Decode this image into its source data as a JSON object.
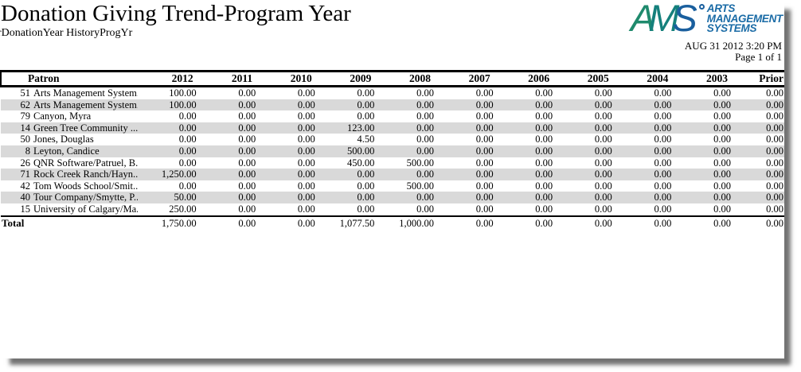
{
  "report": {
    "title": "Donation Giving Trend-Program Year",
    "subtitle": "rDonationYear HistoryProgYr",
    "timestamp": "AUG 31 2012 3:20 PM",
    "page_info": "Page 1 of 1"
  },
  "logo": {
    "letter_a": "A",
    "letter_m": "M",
    "letter_s": "S",
    "lines": [
      "ARTS",
      "MANAGEMENT",
      "SYSTEMS"
    ],
    "colors": {
      "letter_a": "#1f8a6d",
      "letter_m": "#15807c",
      "letter_s": "#1a5f9e",
      "text": "#1a6ba6"
    }
  },
  "table": {
    "zebra_color": "#d9d9d9",
    "patron_header": "Patron",
    "year_headers": [
      "2012",
      "2011",
      "2010",
      "2009",
      "2008",
      "2007",
      "2006",
      "2005",
      "2004",
      "2003",
      "Prior"
    ],
    "rows": [
      {
        "id": "51",
        "name": "Arts Management System...",
        "values": [
          "100.00",
          "0.00",
          "0.00",
          "0.00",
          "0.00",
          "0.00",
          "0.00",
          "0.00",
          "0.00",
          "0.00",
          "0.00"
        ]
      },
      {
        "id": "62",
        "name": "Arts Management System...",
        "values": [
          "100.00",
          "0.00",
          "0.00",
          "0.00",
          "0.00",
          "0.00",
          "0.00",
          "0.00",
          "0.00",
          "0.00",
          "0.00"
        ]
      },
      {
        "id": "79",
        "name": "Canyon, Myra",
        "values": [
          "0.00",
          "0.00",
          "0.00",
          "0.00",
          "0.00",
          "0.00",
          "0.00",
          "0.00",
          "0.00",
          "0.00",
          "0.00"
        ]
      },
      {
        "id": "14",
        "name": "Green Tree Community ...",
        "values": [
          "0.00",
          "0.00",
          "0.00",
          "123.00",
          "0.00",
          "0.00",
          "0.00",
          "0.00",
          "0.00",
          "0.00",
          "0.00"
        ]
      },
      {
        "id": "50",
        "name": "Jones, Douglas",
        "values": [
          "0.00",
          "0.00",
          "0.00",
          "4.50",
          "0.00",
          "0.00",
          "0.00",
          "0.00",
          "0.00",
          "0.00",
          "0.00"
        ]
      },
      {
        "id": "8",
        "name": "Leyton, Candice",
        "values": [
          "0.00",
          "0.00",
          "0.00",
          "500.00",
          "0.00",
          "0.00",
          "0.00",
          "0.00",
          "0.00",
          "0.00",
          "0.00"
        ]
      },
      {
        "id": "26",
        "name": "QNR Software/Patruel, B...",
        "values": [
          "0.00",
          "0.00",
          "0.00",
          "450.00",
          "500.00",
          "0.00",
          "0.00",
          "0.00",
          "0.00",
          "0.00",
          "0.00"
        ]
      },
      {
        "id": "71",
        "name": "Rock Creek Ranch/Hayn...",
        "values": [
          "1,250.00",
          "0.00",
          "0.00",
          "0.00",
          "0.00",
          "0.00",
          "0.00",
          "0.00",
          "0.00",
          "0.00",
          "0.00"
        ]
      },
      {
        "id": "42",
        "name": "Tom Woods School/Smit...",
        "values": [
          "0.00",
          "0.00",
          "0.00",
          "0.00",
          "500.00",
          "0.00",
          "0.00",
          "0.00",
          "0.00",
          "0.00",
          "0.00"
        ]
      },
      {
        "id": "40",
        "name": "Tour Company/Smytte, P...",
        "values": [
          "50.00",
          "0.00",
          "0.00",
          "0.00",
          "0.00",
          "0.00",
          "0.00",
          "0.00",
          "0.00",
          "0.00",
          "0.00"
        ]
      },
      {
        "id": "15",
        "name": "University of Calgary/Ma...",
        "values": [
          "250.00",
          "0.00",
          "0.00",
          "0.00",
          "0.00",
          "0.00",
          "0.00",
          "0.00",
          "0.00",
          "0.00",
          "0.00"
        ]
      }
    ],
    "total": {
      "label": "Total",
      "values": [
        "1,750.00",
        "0.00",
        "0.00",
        "1,077.50",
        "1,000.00",
        "0.00",
        "0.00",
        "0.00",
        "0.00",
        "0.00",
        "0.00"
      ]
    }
  }
}
